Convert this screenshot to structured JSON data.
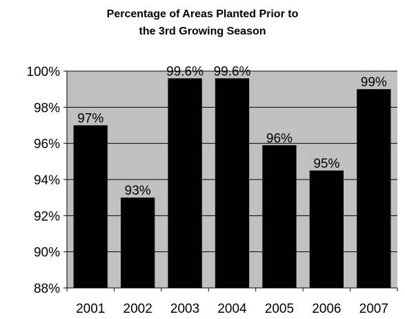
{
  "chart_data": {
    "type": "bar",
    "title_lines": [
      "Percentage of Areas Planted Prior to",
      "the 3rd Growing Season"
    ],
    "categories": [
      "2001",
      "2002",
      "2003",
      "2004",
      "2005",
      "2006",
      "2007"
    ],
    "values": [
      97,
      93,
      99.6,
      99.6,
      95.9,
      94.5,
      99
    ],
    "data_labels": [
      "97%",
      "93%",
      "99.6%",
      "99.6%",
      "96%",
      "95%",
      "99%"
    ],
    "ylim": [
      88,
      100
    ],
    "yticks": [
      88,
      90,
      92,
      94,
      96,
      98,
      100
    ],
    "ytick_labels": [
      "88%",
      "90%",
      "92%",
      "94%",
      "96%",
      "98%",
      "100%"
    ],
    "xlabel": "",
    "ylabel": "",
    "grid": true,
    "plot_background": "#c0c0c0",
    "bar_color": "#000000"
  }
}
